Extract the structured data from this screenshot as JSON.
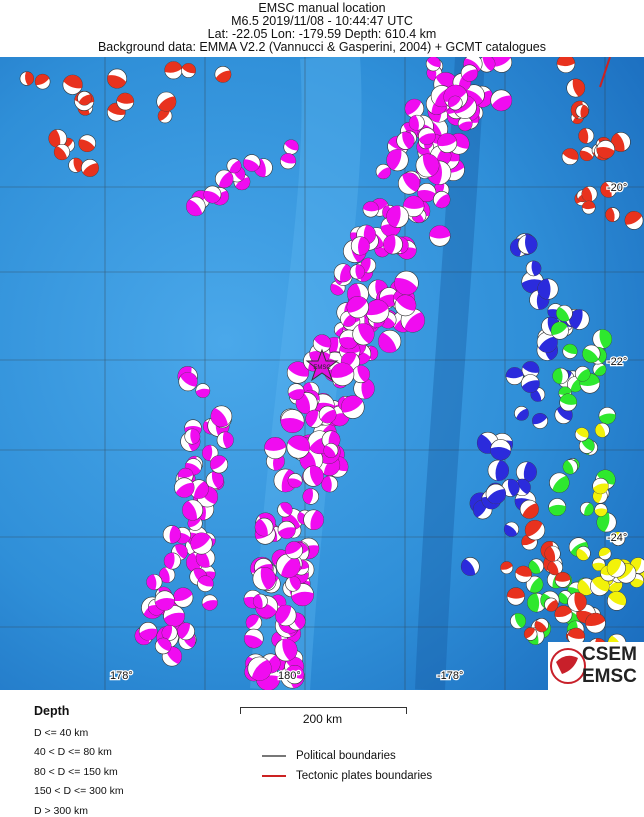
{
  "header": {
    "line1": "EMSC manual location",
    "line2": "M6.5  2019/11/08 - 10:44:47 UTC",
    "line3": "Lat: -22.05    Lon: -179.59     Depth: 610.4 km",
    "line4": "Background data: EMMA V2.2 (Vannucci & Gasperini, 2004) + GCMT catalogues"
  },
  "map": {
    "lat_labels": [
      "-20°",
      "-22°",
      "-24°"
    ],
    "lon_labels": [
      "178°",
      "180°",
      "-178°"
    ],
    "epicenter_label": "EMSC",
    "epicenter": {
      "lat": -22.05,
      "lon": -179.59
    },
    "ocean_color": "#2f8fd8",
    "depth_colors": [
      "#e8321e",
      "#2ee82e",
      "#f2f20a",
      "#2b2bdc",
      "#f00cf0"
    ]
  },
  "legend": {
    "depth_title": "Depth",
    "depth_classes": [
      "D <= 40 km",
      "40 < D <= 80 km",
      "80 < D <= 150 km",
      "150 < D <= 300 km",
      "D > 300 km"
    ],
    "scale_label": "200 km",
    "boundaries": [
      {
        "label": "Political boundaries",
        "color": "#777777"
      },
      {
        "label": "Tectonic plates boundaries",
        "color": "#cc2222"
      }
    ]
  },
  "logo": {
    "top": "CSEM",
    "bottom": "EMSC"
  }
}
